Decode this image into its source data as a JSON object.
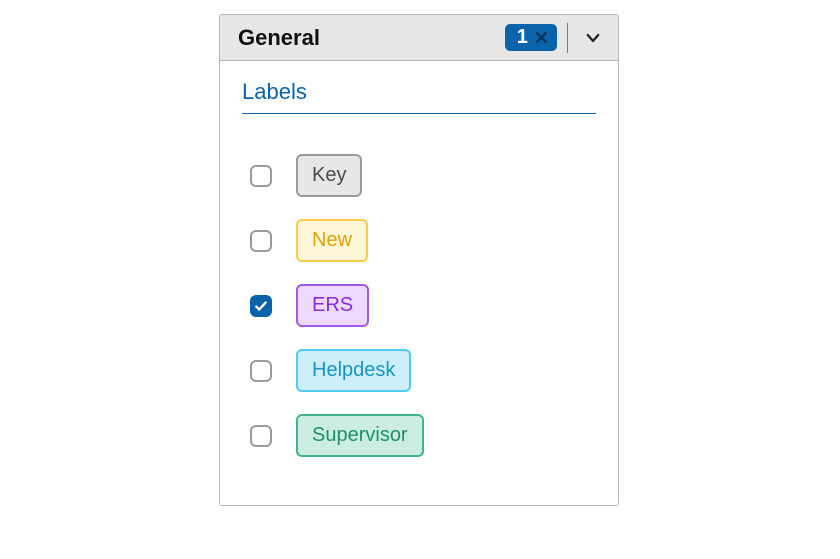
{
  "header": {
    "title": "General",
    "badge_count": "1",
    "badge_bg": "#0b63aa",
    "badge_fg": "#ffffff"
  },
  "section": {
    "title": "Labels",
    "title_color": "#0b63aa"
  },
  "labels": [
    {
      "checked": false,
      "text": "Key",
      "fill": "#e7e7e7",
      "border": "#9a9a9a",
      "text_color": "#4a4a4a"
    },
    {
      "checked": false,
      "text": "New",
      "fill": "#fef6d9",
      "border": "#f7cd45",
      "text_color": "#e0a400"
    },
    {
      "checked": true,
      "text": "ERS",
      "fill": "#ecd9fb",
      "border": "#a259e6",
      "text_color": "#8a2be2"
    },
    {
      "checked": false,
      "text": "Helpdesk",
      "fill": "#cdeffb",
      "border": "#4fcaf0",
      "text_color": "#1796c4"
    },
    {
      "checked": false,
      "text": "Supervisor",
      "fill": "#cbeee1",
      "border": "#3fb68d",
      "text_color": "#1f8f6a"
    }
  ]
}
